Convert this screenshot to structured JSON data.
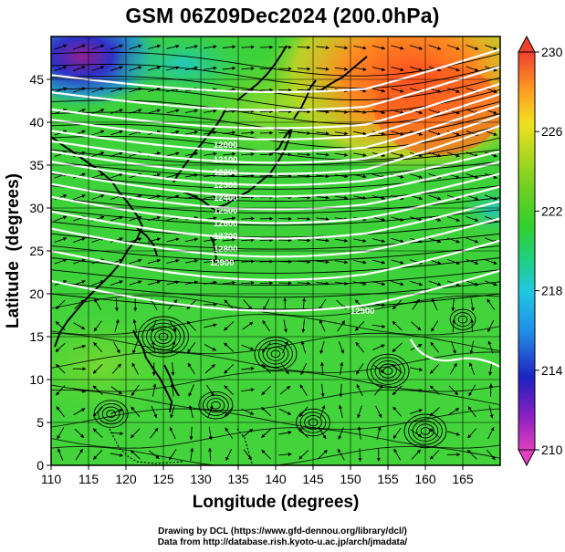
{
  "title": "GSM 06Z09Dec2024 (200.0hPa)",
  "x_axis": {
    "label": "Longitude (degrees)",
    "ticks": [
      "110",
      "115",
      "120",
      "125",
      "130",
      "135",
      "140",
      "145",
      "150",
      "155",
      "160",
      "165"
    ],
    "tick_values": [
      110,
      115,
      120,
      125,
      130,
      135,
      140,
      145,
      150,
      155,
      160,
      165
    ],
    "range": [
      110,
      170
    ]
  },
  "y_axis": {
    "label": "Latitude  (degrees)",
    "ticks": [
      "0",
      "5",
      "10",
      "15",
      "20",
      "25",
      "30",
      "35",
      "40",
      "45"
    ],
    "tick_values": [
      0,
      5,
      10,
      15,
      20,
      25,
      30,
      35,
      40,
      45
    ],
    "range": [
      0,
      50
    ]
  },
  "colorbar": {
    "ticks": [
      "210",
      "214",
      "218",
      "222",
      "226",
      "230"
    ],
    "tick_values": [
      210,
      214,
      218,
      222,
      226,
      230
    ],
    "range": [
      210,
      230
    ],
    "colors": [
      "#e040c0",
      "#8020c0",
      "#2020c0",
      "#2080e0",
      "#20c0e0",
      "#20d080",
      "#30d030",
      "#60d020",
      "#a0d820",
      "#e0e020",
      "#ffb020",
      "#ff7020",
      "#f04030"
    ]
  },
  "contour_labels": [
    "12000",
    "12100",
    "12200",
    "12300",
    "12400",
    "12500",
    "12600",
    "12700",
    "12800",
    "12900",
    "12900"
  ],
  "credits": {
    "line1": "Drawing by DCL (https://www.gfd-dennou.org/library/dcl/)",
    "line2": "Data from http://database.rish.kyoto-u.ac.jp/arch/jmadata/"
  }
}
